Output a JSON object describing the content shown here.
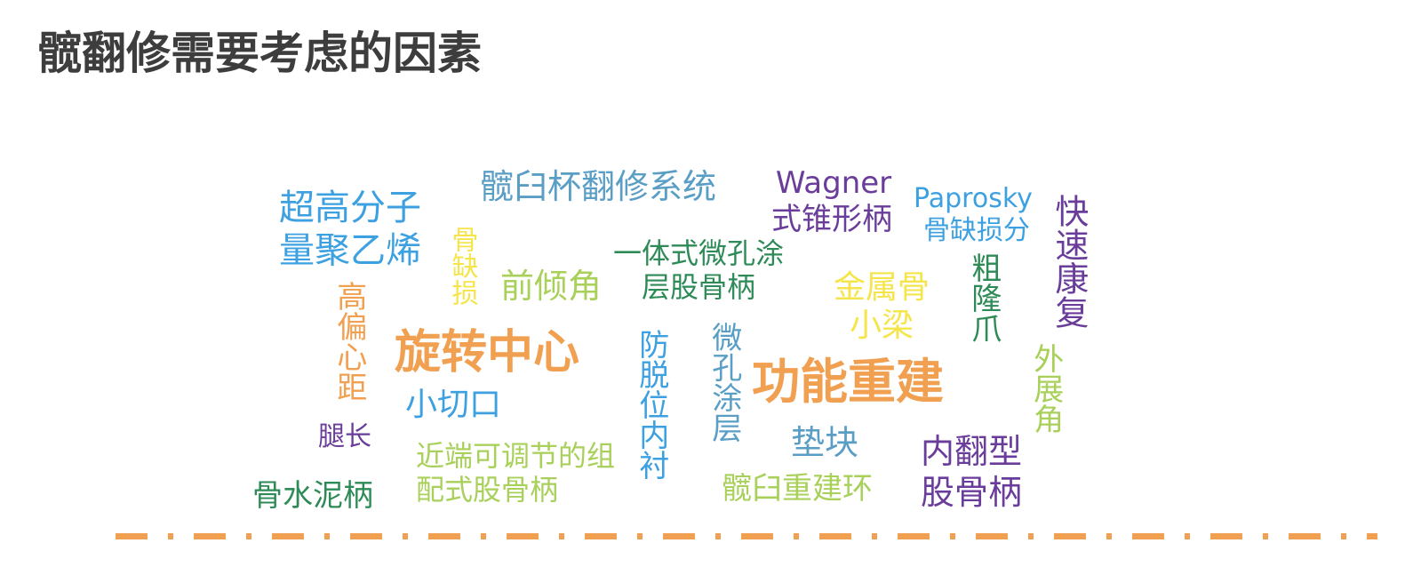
{
  "page": {
    "title": "髋翻修需要考虑的因素"
  },
  "colors": {
    "title": "#3d3d3d",
    "orange": "#f0a050",
    "blue": "#3da0e0",
    "steel": "#5a9ec6",
    "purple": "#6a3d9a",
    "green": "#2e8b57",
    "yellow": "#f5e54a",
    "lime": "#a8d05a",
    "divider": "#f0a050"
  },
  "words": {
    "uhmwpe": [
      "超高分子",
      "量聚乙烯"
    ],
    "revision_system": "髋臼杯翻修系统",
    "wagner": [
      "Wagner",
      "式锥形柄"
    ],
    "paprosky": [
      "Paprosky",
      "骨缺损分"
    ],
    "fast_recovery": "快速康复",
    "bone_defect": "骨缺损",
    "anteversion": "前倾角",
    "porous_stem": [
      "一体式微孔涂",
      "层股骨柄"
    ],
    "metal_trabecular": [
      "金属骨",
      "小梁"
    ],
    "trochanter_claw": "粗隆爪",
    "high_offset": "高偏心距",
    "rotation_center": "旋转中心",
    "anti_dislocation": "防脱位内衬",
    "porous_coating": "微孔涂层",
    "function_rebuild": "功能重建",
    "abduction": "外展角",
    "small_incision": "小切口",
    "leg_length": "腿长",
    "modular_stem": [
      "近端可调节的组",
      "配式股骨柄"
    ],
    "augment": "垫块",
    "varus_stem": [
      "内翻型",
      "股骨柄"
    ],
    "cement_stem": "骨水泥柄",
    "acetabular_ring": "髋臼重建环"
  }
}
